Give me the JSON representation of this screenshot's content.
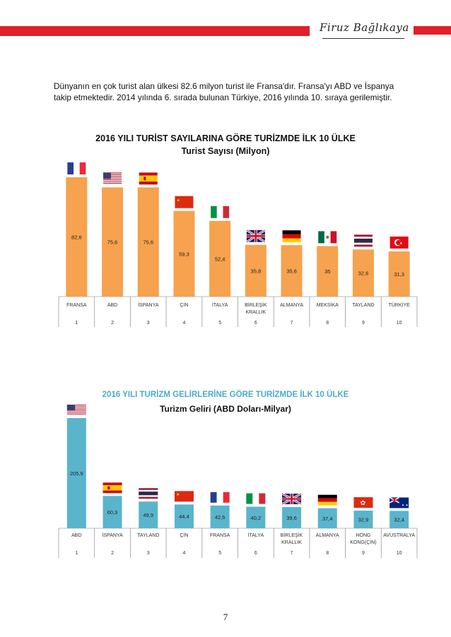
{
  "header": {
    "signature": "Firuz Bağlıkaya",
    "accent_color": "#e0202a"
  },
  "intro_text": "Dünyanın en çok turist alan ülkesi 82.6 milyon turist ile Fransa'dır. Fransa'yı ABD ve İspanya takip etmektedir. 2014 yılında 6. sırada bulunan Türkiye, 2016 yılında 10. sıraya gerilemiştir.",
  "chart_data": [
    {
      "type": "bar",
      "title": "2016 YILI TURİST SAYILARINA GÖRE TURİZMDE İLK 10 ÜLKE",
      "subtitle": "Turist Sayısı (Milyon)",
      "title_color": "#111111",
      "bar_color": "#f6a24e",
      "categories": [
        "FRANSA",
        "ABD",
        "İSPANYA",
        "ÇİN",
        "İTALYA",
        "BİRLEŞİK KRALLIK",
        "ALMANYA",
        "MEKSİKA",
        "TAYLAND",
        "TÜRKİYE"
      ],
      "ranks": [
        "1",
        "2",
        "3",
        "4",
        "5",
        "6",
        "7",
        "8",
        "9",
        "10"
      ],
      "values": [
        82.6,
        75.6,
        75.6,
        59.3,
        52.4,
        35.8,
        35.6,
        35,
        32.6,
        31.3
      ],
      "value_labels": [
        "82,6",
        "75,6",
        "75,6",
        "59,3",
        "52,4",
        "35,8",
        "35,6",
        "35",
        "32,6",
        "31,3"
      ],
      "flags": [
        "france-flag",
        "usa-flag",
        "spain-flag",
        "china-flag",
        "italy-flag",
        "uk-flag",
        "germany-flag",
        "mexico-flag",
        "thailand-flag",
        "turkey-flag"
      ],
      "ylim": [
        0,
        85
      ],
      "grid": false,
      "xlabel": "",
      "ylabel": ""
    },
    {
      "type": "bar",
      "title": "2016 YILI TURİZM GELİRLERİNE GÖRE TURİZMDE İLK 10 ÜLKE",
      "subtitle": "Turizm Geliri  (ABD Doları-Milyar)",
      "title_color": "#4aaccc",
      "bar_color": "#5ab4cc",
      "categories": [
        "ABD",
        "İSPANYA",
        "TAYLAND",
        "ÇİN",
        "FRANSA",
        "İTALYA",
        "BİRLEŞİK KRALLIK",
        "ALMANYA",
        "HONG KONG(ÇİN)",
        "AVUSTRALYA"
      ],
      "ranks": [
        "1",
        "2",
        "3",
        "4",
        "5",
        "6",
        "7",
        "8",
        "9",
        "10"
      ],
      "values": [
        205.9,
        60.3,
        49.9,
        44.4,
        42.5,
        40.2,
        39.6,
        37.4,
        32.9,
        32.4
      ],
      "value_labels": [
        "205,9",
        "60,3",
        "49,9",
        "44,4",
        "42,5",
        "40,2",
        "39,6",
        "37,4",
        "32,9",
        "32,4"
      ],
      "flags": [
        "usa-flag",
        "spain-flag",
        "thailand-flag",
        "china-flag",
        "france-flag",
        "italy-flag",
        "uk-flag",
        "germany-flag",
        "hongkong-flag",
        "australia-flag"
      ],
      "ylim": [
        0,
        210
      ],
      "grid": false,
      "xlabel": "",
      "ylabel": ""
    }
  ],
  "page_number": "7"
}
